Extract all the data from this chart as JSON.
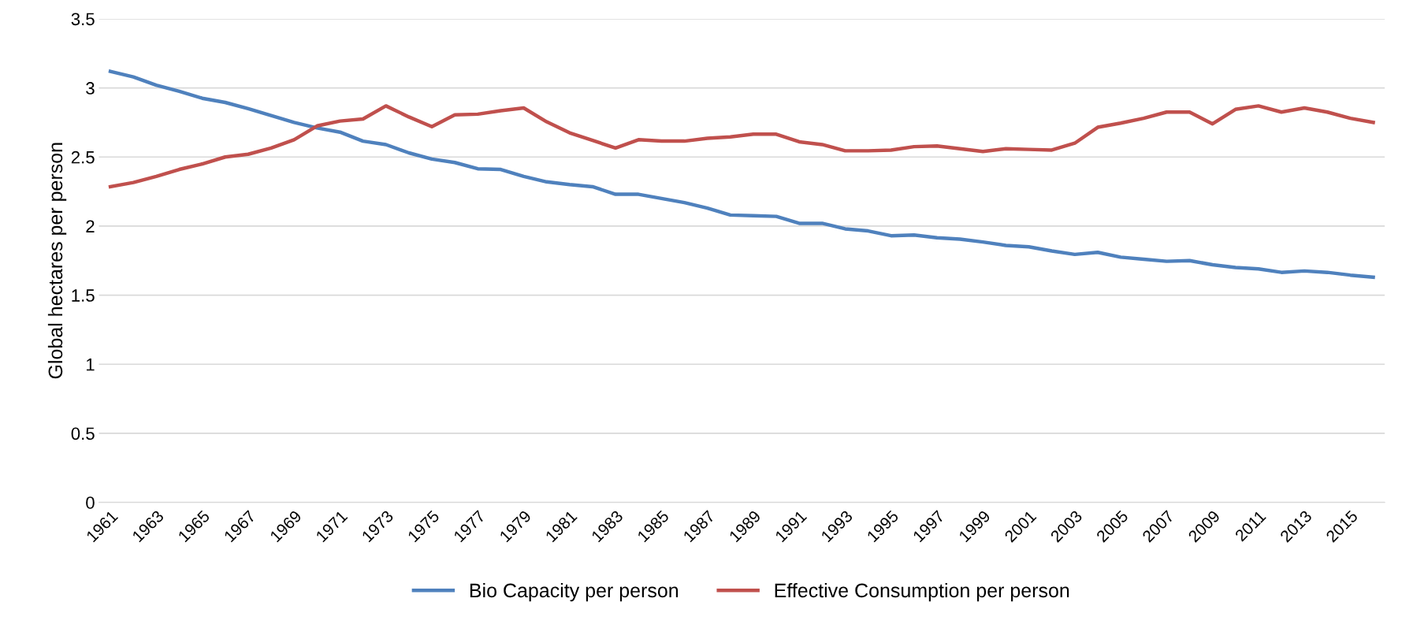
{
  "chart_data": {
    "type": "line",
    "ylabel": "Global hectares per person",
    "categories": [
      "1961",
      null,
      "1963",
      null,
      "1965",
      null,
      "1967",
      null,
      "1969",
      null,
      "1971",
      null,
      "1973",
      null,
      "1975",
      null,
      "1977",
      null,
      "1979",
      null,
      "1981",
      null,
      "1983",
      null,
      "1985",
      null,
      "1987",
      null,
      "1989",
      null,
      "1991",
      null,
      "1993",
      null,
      "1995",
      null,
      "1997",
      null,
      "1999",
      null,
      "2001",
      null,
      "2003",
      null,
      "2005",
      null,
      "2007",
      null,
      "2009",
      null,
      "2011",
      null,
      "2013",
      null,
      "2015",
      null
    ],
    "series": [
      {
        "name": "Bio Capacity per person",
        "color": "#4f81bd",
        "values": [
          3.12,
          3.08,
          3.02,
          2.975,
          2.925,
          2.895,
          2.85,
          2.8,
          2.75,
          2.71,
          2.68,
          2.615,
          2.59,
          2.53,
          2.485,
          2.46,
          2.415,
          2.41,
          2.36,
          2.32,
          2.3,
          2.285,
          2.23,
          2.23,
          2.2,
          2.17,
          2.13,
          2.08,
          2.075,
          2.07,
          2.02,
          2.02,
          1.98,
          1.965,
          1.93,
          1.935,
          1.915,
          1.905,
          1.885,
          1.86,
          1.85,
          1.82,
          1.795,
          1.81,
          1.775,
          1.76,
          1.745,
          1.75,
          1.72,
          1.7,
          1.69,
          1.665,
          1.675,
          1.665,
          1.645,
          1.63
        ]
      },
      {
        "name": "Effective Consumption per person",
        "color": "#c0504d",
        "values": [
          2.285,
          2.315,
          2.36,
          2.41,
          2.45,
          2.5,
          2.52,
          2.565,
          2.625,
          2.725,
          2.76,
          2.775,
          2.87,
          2.79,
          2.72,
          2.805,
          2.81,
          2.835,
          2.855,
          2.755,
          2.675,
          2.62,
          2.565,
          2.625,
          2.615,
          2.615,
          2.635,
          2.645,
          2.665,
          2.665,
          2.61,
          2.59,
          2.545,
          2.545,
          2.55,
          2.575,
          2.58,
          2.56,
          2.54,
          2.56,
          2.555,
          2.55,
          2.6,
          2.715,
          2.745,
          2.78,
          2.825,
          2.825,
          2.74,
          2.845,
          2.87,
          2.825,
          2.855,
          2.825,
          2.78,
          2.75
        ]
      }
    ],
    "ylim": [
      0,
      3.5
    ],
    "yticks": [
      0,
      0.5,
      1,
      1.5,
      2,
      2.5,
      3,
      3.5
    ],
    "grid": "y",
    "legend": "bottom",
    "marker": "none",
    "line_style": "solid"
  }
}
